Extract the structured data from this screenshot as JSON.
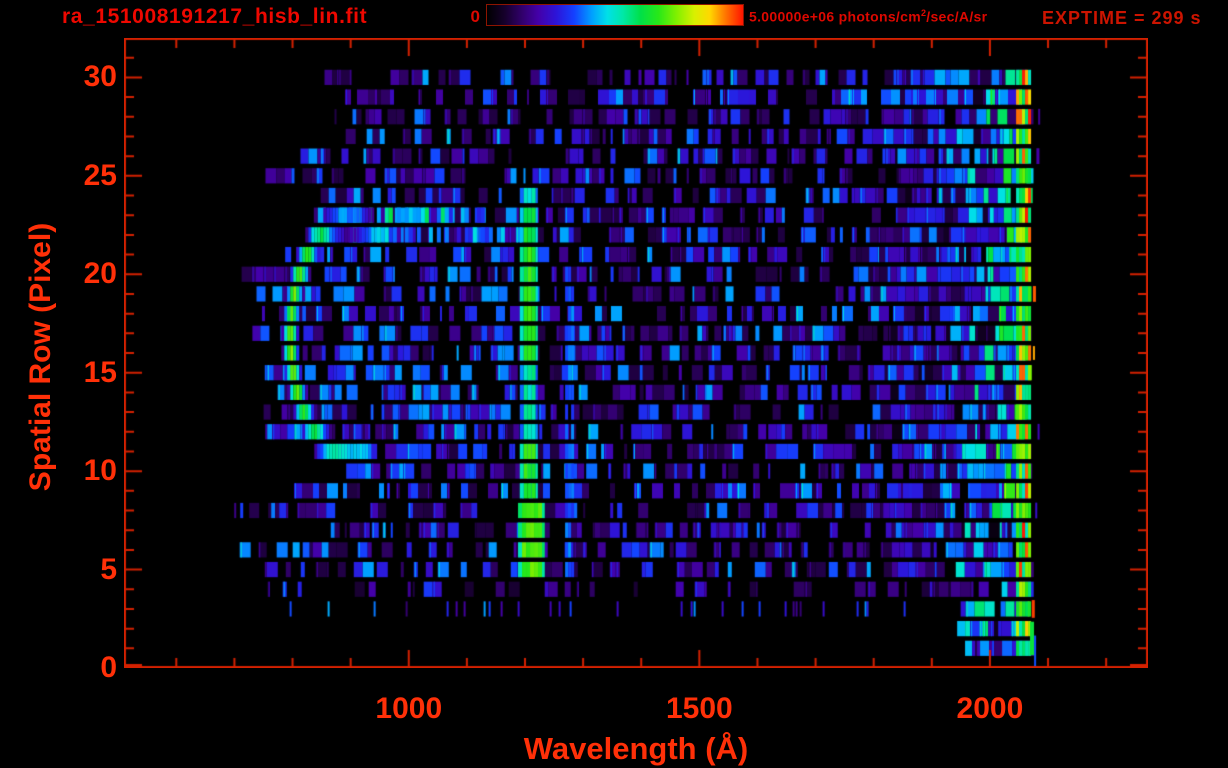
{
  "header": {
    "title": "ra_151008191217_hisb_lin.fit",
    "exptime": "EXPTIME = 299 s",
    "colorbar": {
      "min_label": "0",
      "max_label_prefix": "5.00000e+06 photons/cm",
      "max_label_sup": "2",
      "max_label_suffix": "/sec/A/sr"
    }
  },
  "chart_data": {
    "type": "heatmap",
    "title": "ra_151008191217_hisb_lin.fit",
    "xlabel": "Wavelength (Å)",
    "ylabel": "Spatial Row (Pixel)",
    "xlim": [
      510,
      2272
    ],
    "ylim": [
      0,
      32
    ],
    "x_major_ticks": [
      1000,
      1500,
      2000
    ],
    "x_minor_step": 100,
    "x_minor_range": [
      600,
      2200
    ],
    "y_major_ticks": [
      0,
      5,
      10,
      15,
      20,
      25,
      30
    ],
    "y_minor_step": 1,
    "grid": false,
    "colorbar_scale": {
      "min": 0,
      "max": 5000000,
      "units": "photons/cm2/sec/A/sr"
    },
    "exposure_seconds": 299,
    "data_extent": {
      "lambda": [
        680,
        2066
      ],
      "rows": [
        0,
        30
      ]
    },
    "axis_color": "#d42100",
    "label_color": "#ff3008",
    "seed": 8,
    "colormap_stops": [
      [
        0.0,
        "#000000"
      ],
      [
        0.07,
        "#16002c"
      ],
      [
        0.14,
        "#32006e"
      ],
      [
        0.2,
        "#4400a8"
      ],
      [
        0.27,
        "#2d14d8"
      ],
      [
        0.34,
        "#1440ff"
      ],
      [
        0.41,
        "#00a0ff"
      ],
      [
        0.47,
        "#00e0e8"
      ],
      [
        0.53,
        "#00e8a8"
      ],
      [
        0.6,
        "#00e048"
      ],
      [
        0.67,
        "#28e818"
      ],
      [
        0.74,
        "#80f000"
      ],
      [
        0.81,
        "#d8f000"
      ],
      [
        0.87,
        "#ffd800"
      ],
      [
        0.93,
        "#ff7800"
      ],
      [
        1.0,
        "#ff1400"
      ]
    ],
    "features": [
      {
        "type": "noise",
        "black_fraction": 0.42,
        "base_min": 0.09,
        "base_gamma": 1.8,
        "base_range": 0.33,
        "row_start_lambda": [
          680,
          880
        ],
        "row_end_lambda": [
          2052,
          2068
        ],
        "blue_patch": {
          "rows": [
            9,
            24
          ],
          "lambda": [
            700,
            1190
          ],
          "chance": 0.22,
          "t": [
            0.28,
            0.42
          ]
        }
      },
      {
        "type": "enhanced_band",
        "name": "long-wavelength-airglow-band",
        "lambda": [
          1830,
          2066
        ],
        "rows": [
          1,
          30
        ],
        "t_base": 0.25,
        "t_slope": 0.5
      },
      {
        "type": "hband",
        "name": "upper-blue-streak",
        "rows": [
          22,
          23
        ],
        "lambda": [
          890,
          1160
        ],
        "t": [
          0.26,
          0.5
        ]
      },
      {
        "type": "arc",
        "name": "C-shaped-emission-arc",
        "center_lambda": 894,
        "center_row": 16.8,
        "radius_lambda": 100,
        "radius_rows": 5.9,
        "gap_deg": [
          -58,
          68
        ],
        "thickness": 0.17,
        "t_base": 0.46,
        "t_left_boost": 0.28
      },
      {
        "type": "vline",
        "name": "lyman-alpha-emission-line",
        "lambda": [
          1191,
          1222
        ],
        "lambda_wide": [
          1188,
          1234
        ],
        "wide_rows": [
          5,
          8
        ],
        "rows": [
          5,
          24
        ],
        "t_by_rows": [
          [
            5,
            8,
            0.7
          ],
          [
            9,
            11,
            0.66
          ],
          [
            12,
            15,
            0.53
          ],
          [
            16,
            21,
            0.66
          ],
          [
            22,
            23,
            0.62
          ],
          [
            24,
            24,
            0.5
          ]
        ]
      },
      {
        "type": "vline_faint",
        "name": "faint-blue-line",
        "lambda": [
          1269,
          1281
        ],
        "rows": [
          5,
          20
        ],
        "t": 0.34
      },
      {
        "type": "hot_edge",
        "name": "detector-edge-hot-column",
        "lambda": [
          2045,
          2066
        ],
        "rows": [
          1,
          30
        ],
        "t": [
          0.5,
          0.8
        ],
        "spark_chance": 0.18,
        "spark_t": [
          0.86,
          1.0
        ]
      },
      {
        "type": "outliers",
        "name": "edge-outlier-pixels",
        "items": [
          {
            "lambda": 2074,
            "row": 19,
            "t": 0.95,
            "w": 3,
            "rows_h": 0.8
          },
          {
            "lambda": 2074,
            "row": 16,
            "t": 0.9,
            "w": 2,
            "rows_h": 0.7
          },
          {
            "lambda": 2072,
            "row": 3,
            "t": 0.97,
            "w": 3,
            "rows_h": 0.9
          },
          {
            "lambda": 2069,
            "row": 1.5,
            "t": 0.62,
            "w": 4,
            "rows_h": 1.7
          },
          {
            "lambda": 2076,
            "row": 0.8,
            "t": 0.35,
            "w": 2,
            "rows_h": 1.7
          },
          {
            "lambda": 2080,
            "row": 26,
            "t": 0.2,
            "w": 3,
            "rows_h": 0.8
          },
          {
            "lambda": 2082,
            "row": 12,
            "t": 0.22,
            "w": 2,
            "rows_h": 0.8
          },
          {
            "lambda": 2078,
            "row": 8,
            "t": 0.25,
            "w": 2,
            "rows_h": 0.8
          },
          {
            "lambda": 2083,
            "row": 28,
            "t": 0.18,
            "w": 2,
            "rows_h": 0.8
          }
        ]
      }
    ]
  }
}
